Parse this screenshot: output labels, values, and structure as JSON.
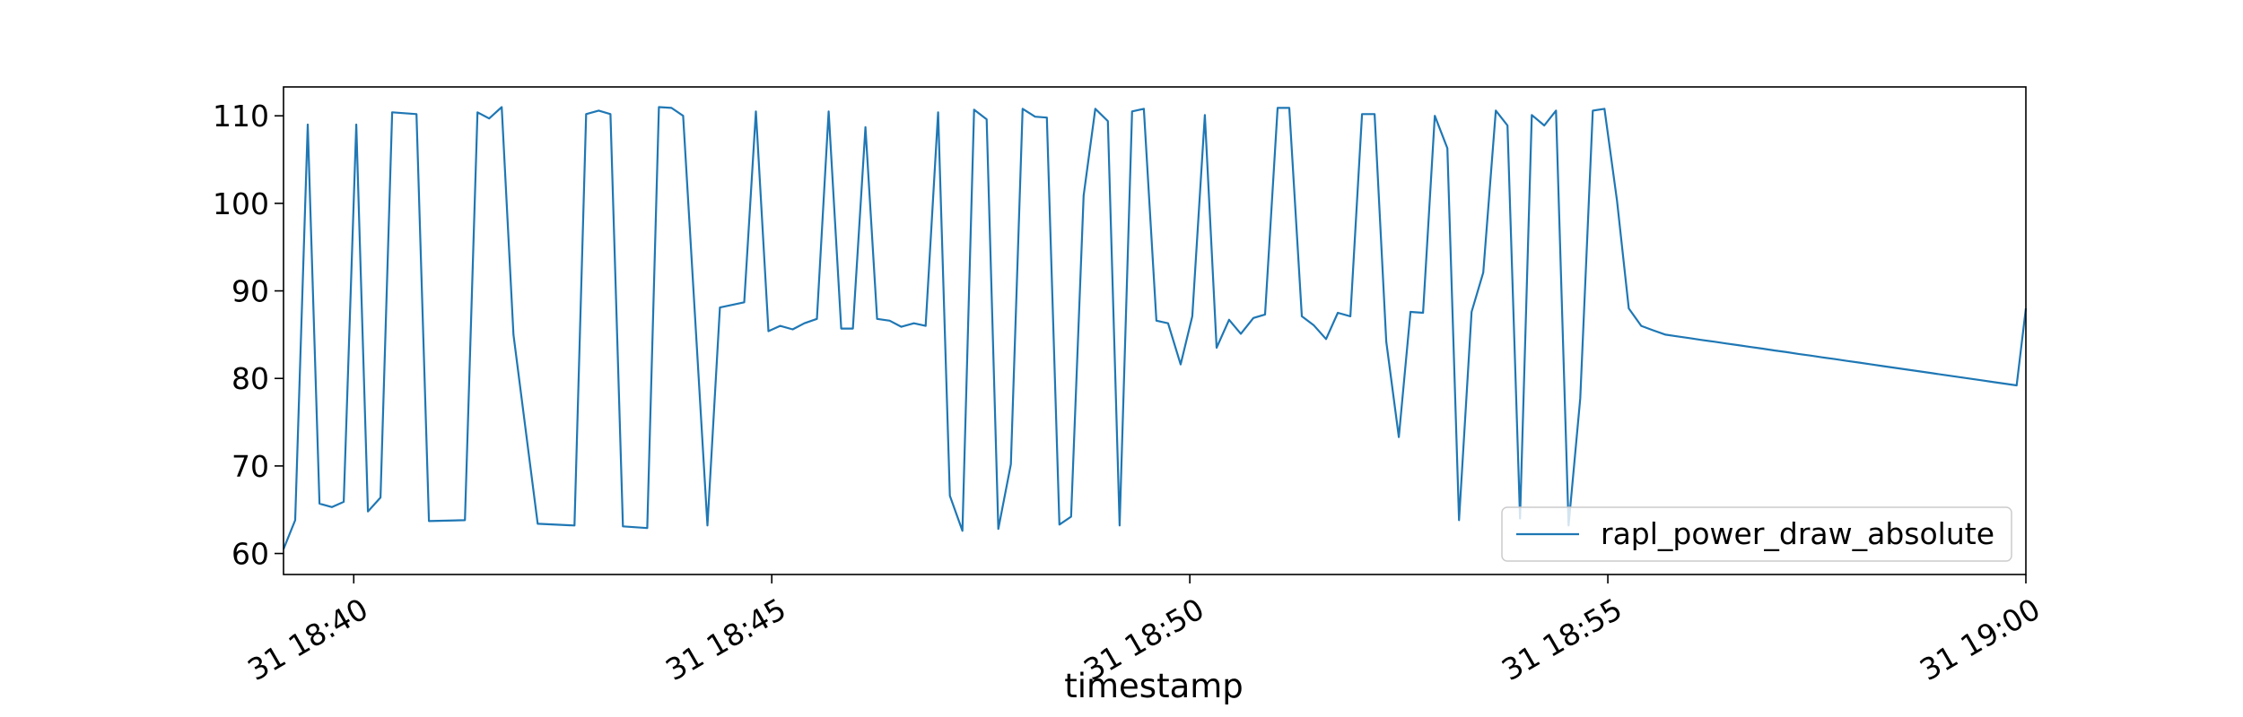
{
  "chart_data": {
    "type": "line",
    "title": "",
    "xlabel": "timestamp",
    "ylabel": "",
    "x_tick_labels": [
      "31 18:40",
      "31 18:45",
      "31 18:50",
      "31 18:55",
      "31 19:00"
    ],
    "x_tick_minutes": [
      40,
      45,
      50,
      55,
      60
    ],
    "y_ticks": [
      60,
      70,
      80,
      90,
      100,
      110
    ],
    "xlim_minutes": [
      39.16,
      60.0
    ],
    "ylim": [
      57.6,
      113.3
    ],
    "grid": false,
    "legend_position": "lower-right",
    "colors": {
      "series": "#1f77b4",
      "axes": "#000000",
      "background": "#ffffff",
      "legend_border": "#cccccc"
    },
    "series": [
      {
        "name": "rapl_power_draw_absolute",
        "x": [
          39.16,
          39.3,
          39.45,
          39.59,
          39.74,
          39.88,
          40.03,
          40.17,
          40.32,
          40.46,
          40.75,
          40.9,
          41.33,
          41.48,
          41.62,
          41.77,
          41.91,
          42.2,
          42.64,
          42.78,
          42.93,
          43.07,
          43.22,
          43.51,
          43.65,
          43.8,
          43.94,
          44.23,
          44.38,
          44.67,
          44.81,
          44.96,
          45.1,
          45.25,
          45.39,
          45.54,
          45.68,
          45.83,
          45.97,
          46.12,
          46.26,
          46.41,
          46.55,
          46.7,
          46.84,
          46.99,
          47.13,
          47.28,
          47.42,
          47.57,
          47.71,
          47.86,
          48.0,
          48.15,
          48.29,
          48.44,
          48.58,
          48.73,
          48.87,
          49.02,
          49.16,
          49.31,
          49.45,
          49.6,
          49.74,
          49.89,
          50.03,
          50.18,
          50.32,
          50.47,
          50.61,
          50.76,
          50.9,
          51.05,
          51.19,
          51.34,
          51.48,
          51.63,
          51.77,
          51.92,
          52.06,
          52.21,
          52.35,
          52.5,
          52.64,
          52.79,
          52.93,
          53.08,
          53.22,
          53.37,
          53.51,
          53.66,
          53.8,
          53.95,
          54.09,
          54.24,
          54.38,
          54.53,
          54.67,
          54.82,
          54.96,
          55.11,
          55.25,
          55.4,
          55.54,
          55.69,
          55.83,
          55.98,
          56.12,
          56.27,
          56.41,
          56.56,
          56.7,
          56.85,
          56.99,
          57.14,
          57.28,
          57.43,
          57.57,
          57.72,
          57.86,
          58.01,
          58.15,
          58.3,
          58.44,
          58.59,
          58.73,
          58.88,
          59.02,
          59.17,
          59.31,
          59.46,
          59.6,
          59.75,
          59.89,
          60.0
        ],
        "values": [
          60.5,
          63.8,
          109.0,
          65.7,
          65.3,
          65.9,
          109.0,
          64.8,
          66.4,
          110.4,
          110.2,
          63.7,
          63.8,
          110.4,
          109.7,
          111.0,
          85.0,
          63.4,
          63.2,
          110.2,
          110.6,
          110.2,
          63.1,
          62.9,
          111.0,
          110.9,
          110.0,
          63.2,
          88.1,
          88.7,
          110.5,
          85.4,
          86.0,
          85.6,
          86.3,
          86.8,
          110.5,
          85.7,
          85.7,
          108.7,
          86.8,
          86.6,
          85.9,
          86.3,
          86.0,
          110.4,
          66.6,
          62.6,
          110.7,
          109.6,
          62.8,
          70.2,
          110.8,
          109.9,
          109.8,
          63.3,
          64.2,
          100.9,
          110.8,
          109.4,
          63.2,
          110.5,
          110.8,
          86.6,
          86.3,
          81.6,
          87.1,
          110.1,
          83.5,
          86.7,
          85.1,
          86.9,
          87.3,
          110.9,
          110.9,
          87.1,
          86.1,
          84.5,
          87.5,
          87.1,
          110.2,
          110.2,
          84.2,
          73.3,
          87.6,
          87.5,
          110.0,
          106.3,
          63.8,
          87.6,
          92.1,
          110.6,
          108.9,
          64.0,
          110.1,
          108.9,
          110.6,
          63.2,
          77.7,
          110.6,
          110.8,
          100.3,
          88.0,
          86.0,
          85.5,
          85.0,
          84.8,
          84.6,
          84.4,
          84.2,
          84.0,
          83.8,
          83.6,
          83.4,
          83.2,
          83.0,
          82.8,
          82.6,
          82.4,
          82.2,
          82.0,
          81.8,
          81.6,
          81.4,
          81.2,
          81.0,
          80.8,
          80.6,
          80.4,
          80.2,
          80.0,
          79.8,
          79.6,
          79.4,
          79.2,
          88.0
        ]
      }
    ]
  }
}
